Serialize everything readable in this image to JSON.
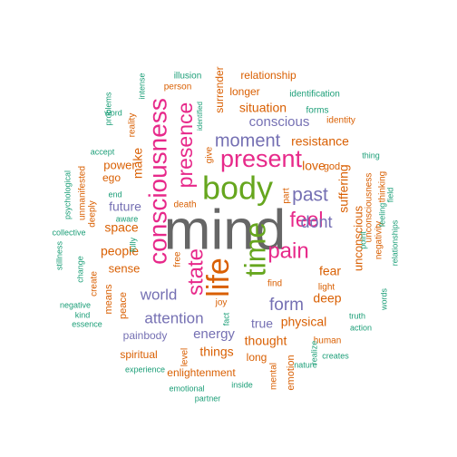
{
  "colors": {
    "teal": "#1b9e77",
    "orange": "#d95f02",
    "purple": "#7570b3",
    "pink": "#e7298a",
    "green": "#66a61e",
    "gray": "#666666"
  },
  "words": [
    {
      "id": "mind",
      "text": "mind",
      "color": "gray"
    },
    {
      "id": "consciousness",
      "text": "consciousness",
      "color": "pink"
    },
    {
      "id": "body",
      "text": "body",
      "color": "green"
    },
    {
      "id": "present",
      "text": "present",
      "color": "pink"
    },
    {
      "id": "life",
      "text": "life",
      "color": "orange"
    },
    {
      "id": "time",
      "text": "time",
      "color": "green"
    },
    {
      "id": "pain",
      "text": "pain",
      "color": "pink"
    },
    {
      "id": "presence",
      "text": "presence",
      "color": "pink"
    },
    {
      "id": "state",
      "text": "state",
      "color": "pink"
    },
    {
      "id": "feel",
      "text": "feel",
      "color": "pink"
    },
    {
      "id": "moment",
      "text": "moment",
      "color": "purple"
    },
    {
      "id": "past",
      "text": "past",
      "color": "purple"
    },
    {
      "id": "dont",
      "text": "dont",
      "color": "purple"
    },
    {
      "id": "form",
      "text": "form",
      "color": "purple"
    },
    {
      "id": "world",
      "text": "world",
      "color": "purple"
    },
    {
      "id": "attention",
      "text": "attention",
      "color": "purple"
    },
    {
      "id": "energy",
      "text": "energy",
      "color": "purple"
    },
    {
      "id": "conscious",
      "text": "conscious",
      "color": "purple"
    },
    {
      "id": "true",
      "text": "true",
      "color": "purple"
    },
    {
      "id": "future",
      "text": "future",
      "color": "purple"
    },
    {
      "id": "painbody",
      "text": "painbody",
      "color": "purple"
    },
    {
      "id": "situation",
      "text": "situation",
      "color": "orange"
    },
    {
      "id": "resistance",
      "text": "resistance",
      "color": "orange"
    },
    {
      "id": "suffering",
      "text": "suffering",
      "color": "orange"
    },
    {
      "id": "unconscious",
      "text": "unconscious",
      "color": "orange"
    },
    {
      "id": "physical",
      "text": "physical",
      "color": "orange"
    },
    {
      "id": "thought",
      "text": "thought",
      "color": "orange"
    },
    {
      "id": "things",
      "text": "things",
      "color": "orange"
    },
    {
      "id": "people",
      "text": "people",
      "color": "orange"
    },
    {
      "id": "space",
      "text": "space",
      "color": "orange"
    },
    {
      "id": "sense",
      "text": "sense",
      "color": "orange"
    },
    {
      "id": "make",
      "text": "make",
      "color": "orange"
    },
    {
      "id": "love",
      "text": "love",
      "color": "orange"
    },
    {
      "id": "fear",
      "text": "fear",
      "color": "orange"
    },
    {
      "id": "deep",
      "text": "deep",
      "color": "orange"
    },
    {
      "id": "power",
      "text": "power",
      "color": "orange"
    },
    {
      "id": "ego",
      "text": "ego",
      "color": "orange"
    },
    {
      "id": "relationship",
      "text": "relationship",
      "color": "orange"
    },
    {
      "id": "longer",
      "text": "longer",
      "color": "orange"
    },
    {
      "id": "surrender",
      "text": "surrender",
      "color": "orange"
    },
    {
      "id": "enlightenment",
      "text": "enlightenment",
      "color": "orange"
    },
    {
      "id": "spiritual",
      "text": "spiritual",
      "color": "orange"
    },
    {
      "id": "long",
      "text": "long",
      "color": "orange"
    },
    {
      "id": "emotion",
      "text": "emotion",
      "color": "orange"
    },
    {
      "id": "god",
      "text": "god",
      "color": "orange"
    },
    {
      "id": "means",
      "text": "means",
      "color": "orange"
    },
    {
      "id": "peace",
      "text": "peace",
      "color": "orange"
    },
    {
      "id": "free",
      "text": "free",
      "color": "orange"
    },
    {
      "id": "create",
      "text": "create",
      "color": "orange"
    },
    {
      "id": "reality",
      "text": "reality",
      "color": "orange"
    },
    {
      "id": "give",
      "text": "give",
      "color": "orange"
    },
    {
      "id": "deeply",
      "text": "deeply",
      "color": "orange"
    },
    {
      "id": "joy",
      "text": "joy",
      "color": "orange"
    },
    {
      "id": "find",
      "text": "find",
      "color": "orange"
    },
    {
      "id": "death",
      "text": "death",
      "color": "orange"
    },
    {
      "id": "person",
      "text": "person",
      "color": "orange"
    },
    {
      "id": "human",
      "text": "human",
      "color": "orange"
    },
    {
      "id": "light",
      "text": "light",
      "color": "orange"
    },
    {
      "id": "identity",
      "text": "identity",
      "color": "orange"
    },
    {
      "id": "unmanifested",
      "text": "unmanifested",
      "color": "orange"
    },
    {
      "id": "part",
      "text": "part",
      "color": "orange"
    },
    {
      "id": "mental",
      "text": "mental",
      "color": "orange"
    },
    {
      "id": "unconsciousness",
      "text": "unconsciousness",
      "color": "orange"
    },
    {
      "id": "negativity",
      "text": "negativity",
      "color": "orange"
    },
    {
      "id": "level",
      "text": "level",
      "color": "orange"
    },
    {
      "id": "thinking",
      "text": "thinking",
      "color": "orange"
    },
    {
      "id": "illusion",
      "text": "illusion",
      "color": "teal"
    },
    {
      "id": "identification",
      "text": "identification",
      "color": "teal"
    },
    {
      "id": "forms",
      "text": "forms",
      "color": "teal"
    },
    {
      "id": "intense",
      "text": "intense",
      "color": "teal"
    },
    {
      "id": "problems",
      "text": "problems",
      "color": "teal"
    },
    {
      "id": "word",
      "text": "word",
      "color": "teal"
    },
    {
      "id": "accept",
      "text": "accept",
      "color": "teal"
    },
    {
      "id": "psychological",
      "text": "psychological",
      "color": "teal"
    },
    {
      "id": "end",
      "text": "end",
      "color": "teal"
    },
    {
      "id": "aware",
      "text": "aware",
      "color": "teal"
    },
    {
      "id": "collective",
      "text": "collective",
      "color": "teal"
    },
    {
      "id": "stillness",
      "text": "stillness",
      "color": "teal"
    },
    {
      "id": "change",
      "text": "change",
      "color": "teal"
    },
    {
      "id": "negative",
      "text": "negative",
      "color": "teal"
    },
    {
      "id": "kind",
      "text": "kind",
      "color": "teal"
    },
    {
      "id": "essence",
      "text": "essence",
      "color": "teal"
    },
    {
      "id": "fully",
      "text": "fully",
      "color": "teal"
    },
    {
      "id": "identified",
      "text": "identified",
      "color": "teal"
    },
    {
      "id": "thing",
      "text": "thing",
      "color": "teal"
    },
    {
      "id": "feeling",
      "text": "feeling",
      "color": "teal"
    },
    {
      "id": "field",
      "text": "field",
      "color": "teal"
    },
    {
      "id": "point",
      "text": "point",
      "color": "teal"
    },
    {
      "id": "relationships",
      "text": "relationships",
      "color": "teal"
    },
    {
      "id": "words",
      "text": "words",
      "color": "teal"
    },
    {
      "id": "truth",
      "text": "truth",
      "color": "teal"
    },
    {
      "id": "action",
      "text": "action",
      "color": "teal"
    },
    {
      "id": "fact",
      "text": "fact",
      "color": "teal"
    },
    {
      "id": "realize",
      "text": "realize",
      "color": "teal"
    },
    {
      "id": "creates",
      "text": "creates",
      "color": "teal"
    },
    {
      "id": "nature",
      "text": "nature",
      "color": "teal"
    },
    {
      "id": "experience",
      "text": "experience",
      "color": "teal"
    },
    {
      "id": "emotional",
      "text": "emotional",
      "color": "teal"
    },
    {
      "id": "inside",
      "text": "inside",
      "color": "teal"
    },
    {
      "id": "partner",
      "text": "partner",
      "color": "teal"
    }
  ]
}
